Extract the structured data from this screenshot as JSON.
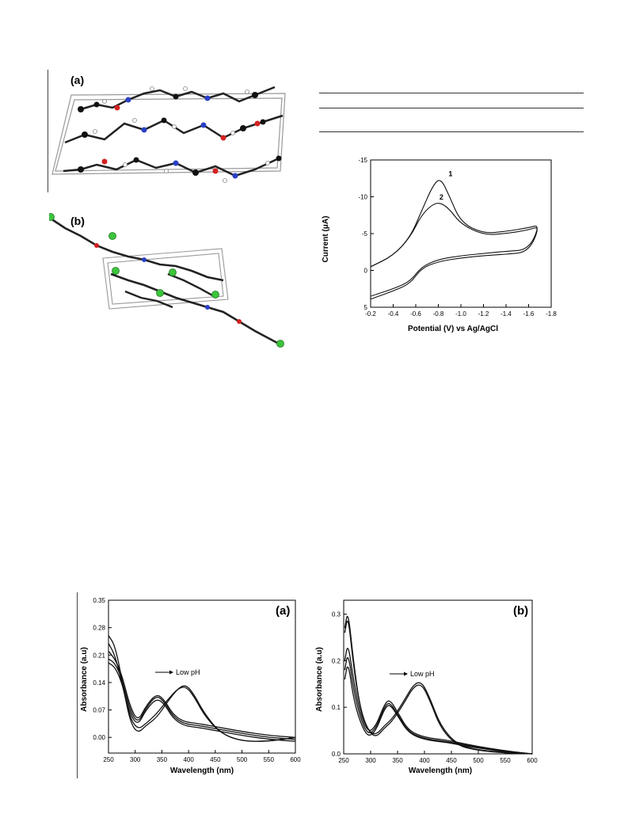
{
  "figures": {
    "crystal": {
      "label_a": "(a)",
      "label_b": "(b)"
    },
    "cv": {
      "curve_labels": [
        "1",
        "2"
      ]
    },
    "uv": {
      "label_a": "(a)",
      "label_b": "(b)",
      "annotation": "Low pH"
    }
  },
  "chart_data": [
    {
      "type": "line",
      "xlabel": "Potential (V) vs Ag/AgCl",
      "ylabel": "Current (μA)",
      "xlim": [
        -0.2,
        -1.8
      ],
      "ylim": [
        5,
        -15
      ],
      "x_ticks": [
        "-0.2",
        "-0.4",
        "-0.6",
        "-0.8",
        "-1.0",
        "-1.2",
        "-1.4",
        "-1.6",
        "-1.8"
      ],
      "y_ticks": [
        "-15",
        "-10",
        "-5",
        "0",
        "5"
      ],
      "series": [
        {
          "name": "1",
          "x": [
            -0.2,
            -0.4,
            -0.55,
            -0.65,
            -0.75,
            -0.82,
            -0.9,
            -1.0,
            -1.2,
            -1.4,
            -1.6,
            -1.7,
            -1.6,
            -1.4,
            -1.2,
            -1.0,
            -0.8,
            -0.65,
            -0.55,
            -0.4,
            -0.2
          ],
          "y": [
            -0.5,
            -2.0,
            -4.5,
            -8.0,
            -11.5,
            -12.6,
            -10.0,
            -6.5,
            -5.0,
            -5.3,
            -5.8,
            -6.2,
            -2.8,
            -2.6,
            -2.3,
            -2.0,
            -1.5,
            -0.5,
            1.5,
            2.5,
            3.5
          ]
        },
        {
          "name": "2",
          "x": [
            -0.2,
            -0.4,
            -0.55,
            -0.65,
            -0.75,
            -0.82,
            -0.9,
            -1.0,
            -1.2,
            -1.4,
            -1.6,
            -1.7,
            -1.6,
            -1.4,
            -1.2,
            -1.0,
            -0.8,
            -0.65,
            -0.55,
            -0.4,
            -0.2
          ],
          "y": [
            -0.5,
            -2.0,
            -4.5,
            -7.5,
            -9.0,
            -9.2,
            -8.3,
            -6.3,
            -4.8,
            -5.0,
            -5.5,
            -6.0,
            -2.5,
            -2.2,
            -2.0,
            -1.7,
            -1.2,
            -0.3,
            1.8,
            2.8,
            3.9
          ]
        }
      ]
    },
    {
      "type": "line",
      "xlabel": "Wavelength (nm)",
      "ylabel": "Absorbance (a.u)",
      "xlim": [
        250,
        600
      ],
      "ylim": [
        -0.04,
        0.35
      ],
      "x_ticks": [
        "250",
        "300",
        "350",
        "400",
        "450",
        "500",
        "550",
        "600"
      ],
      "y_ticks": [
        "0.00",
        "0.07",
        "0.14",
        "0.21",
        "0.28",
        "0.35"
      ],
      "series": [
        {
          "x": [
            250,
            262,
            275,
            290,
            305,
            320,
            340,
            360,
            380,
            395,
            410,
            430,
            460,
            500,
            550,
            600
          ],
          "y": [
            0.26,
            0.235,
            0.15,
            0.04,
            0.01,
            0.03,
            0.05,
            0.09,
            0.125,
            0.135,
            0.11,
            0.06,
            0.01,
            -0.01,
            -0.01,
            0.0
          ]
        },
        {
          "x": [
            250,
            262,
            275,
            290,
            305,
            320,
            340,
            360,
            380,
            395,
            410,
            430,
            460,
            500,
            550,
            600
          ],
          "y": [
            0.24,
            0.21,
            0.14,
            0.05,
            0.02,
            0.035,
            0.06,
            0.095,
            0.125,
            0.13,
            0.105,
            0.055,
            0.01,
            -0.01,
            -0.01,
            0.0
          ]
        },
        {
          "x": [
            250,
            262,
            275,
            290,
            305,
            320,
            340,
            355,
            370,
            390,
            420,
            460,
            500,
            550,
            600
          ],
          "y": [
            0.22,
            0.2,
            0.16,
            0.08,
            0.04,
            0.08,
            0.112,
            0.095,
            0.06,
            0.04,
            0.035,
            0.025,
            0.015,
            0.005,
            0.0
          ]
        },
        {
          "x": [
            250,
            262,
            275,
            290,
            305,
            320,
            340,
            355,
            370,
            390,
            420,
            460,
            500,
            550,
            600
          ],
          "y": [
            0.2,
            0.19,
            0.15,
            0.07,
            0.035,
            0.075,
            0.108,
            0.09,
            0.055,
            0.035,
            0.03,
            0.02,
            0.01,
            0.0,
            -0.005
          ]
        },
        {
          "x": [
            250,
            262,
            275,
            290,
            305,
            320,
            340,
            355,
            370,
            390,
            420,
            460,
            500,
            550,
            600
          ],
          "y": [
            0.19,
            0.18,
            0.14,
            0.06,
            0.03,
            0.07,
            0.1,
            0.085,
            0.05,
            0.03,
            0.025,
            0.015,
            0.005,
            -0.005,
            -0.01
          ]
        }
      ]
    },
    {
      "type": "line",
      "xlabel": "Wavelength (nm)",
      "ylabel": "Absorbance (a.u)",
      "xlim": [
        250,
        600
      ],
      "ylim": [
        0.0,
        0.33
      ],
      "x_ticks": [
        "250",
        "300",
        "350",
        "400",
        "450",
        "500",
        "550",
        "600"
      ],
      "y_ticks": [
        "0.0",
        "0.1",
        "0.2",
        "0.3"
      ],
      "series": [
        {
          "x": [
            252,
            258,
            268,
            280,
            295,
            310,
            325,
            340,
            360,
            380,
            395,
            410,
            430,
            460,
            500,
            550,
            600
          ],
          "y": [
            0.27,
            0.31,
            0.2,
            0.1,
            0.05,
            0.04,
            0.06,
            0.075,
            0.11,
            0.15,
            0.155,
            0.12,
            0.06,
            0.02,
            0.008,
            0.003,
            0.0
          ]
        },
        {
          "x": [
            252,
            258,
            268,
            280,
            295,
            310,
            325,
            340,
            360,
            380,
            395,
            410,
            430,
            460,
            500,
            550,
            600
          ],
          "y": [
            0.26,
            0.3,
            0.19,
            0.1,
            0.05,
            0.035,
            0.055,
            0.07,
            0.105,
            0.145,
            0.15,
            0.115,
            0.055,
            0.018,
            0.007,
            0.002,
            0.0
          ]
        },
        {
          "x": [
            252,
            258,
            268,
            280,
            295,
            310,
            325,
            335,
            350,
            370,
            400,
            440,
            480,
            520,
            560,
            600
          ],
          "y": [
            0.2,
            0.24,
            0.16,
            0.09,
            0.045,
            0.06,
            0.105,
            0.118,
            0.09,
            0.05,
            0.035,
            0.03,
            0.02,
            0.012,
            0.005,
            0.0
          ]
        },
        {
          "x": [
            252,
            258,
            268,
            280,
            295,
            310,
            325,
            335,
            350,
            370,
            400,
            440,
            480,
            520,
            560,
            600
          ],
          "y": [
            0.18,
            0.22,
            0.14,
            0.08,
            0.04,
            0.055,
            0.1,
            0.112,
            0.085,
            0.047,
            0.032,
            0.027,
            0.018,
            0.01,
            0.004,
            0.0
          ]
        },
        {
          "x": [
            252,
            258,
            268,
            280,
            295,
            310,
            325,
            335,
            350,
            370,
            400,
            440,
            480,
            520,
            560,
            600
          ],
          "y": [
            0.16,
            0.2,
            0.12,
            0.07,
            0.035,
            0.05,
            0.095,
            0.108,
            0.082,
            0.045,
            0.03,
            0.025,
            0.016,
            0.009,
            0.003,
            0.0
          ]
        }
      ]
    }
  ]
}
